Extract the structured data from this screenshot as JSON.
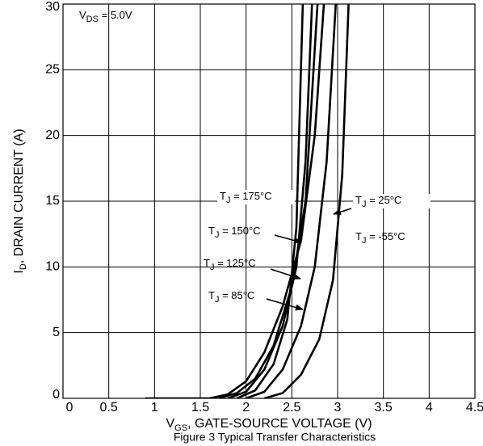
{
  "chart_data": {
    "type": "line",
    "caption": "Figure 3 Typical Transfer Characteristics",
    "x_label": {
      "text": "V",
      "sub": "GS",
      "rest": ", GATE-SOURCE VOLTAGE (V)"
    },
    "y_label": {
      "text": "I",
      "sub": "D",
      "rest": ", DRAIN CURRENT (A)"
    },
    "condition": {
      "text": "V",
      "sub": "DS",
      "rest": " = 5.0V"
    },
    "xlim": [
      0,
      4.5
    ],
    "xticks": [
      0,
      0.5,
      1,
      1.5,
      2,
      2.5,
      3,
      3.5,
      4,
      4.5
    ],
    "ylim": [
      0,
      30
    ],
    "yticks": [
      0,
      5,
      10,
      15,
      20,
      25,
      30
    ],
    "grid": true,
    "color": "#000000",
    "series": [
      {
        "name": {
          "text": "T",
          "sub": "J",
          "rest": " = 175°C"
        },
        "x": [
          0.9,
          1.6,
          1.8,
          2.0,
          2.2,
          2.4,
          2.6,
          2.75,
          2.85
        ],
        "values": [
          0,
          0,
          0.3,
          1.3,
          3.5,
          7,
          12,
          20,
          30
        ]
      },
      {
        "name": {
          "text": "T",
          "sub": "J",
          "rest": " = 150°C"
        },
        "x": [
          1.7,
          1.9,
          2.1,
          2.3,
          2.5,
          2.65,
          2.78
        ],
        "values": [
          0,
          0.4,
          1.5,
          4,
          8.5,
          15,
          30
        ]
      },
      {
        "name": {
          "text": "T",
          "sub": "J",
          "rest": " = 125°C"
        },
        "x": [
          1.8,
          2.0,
          2.2,
          2.4,
          2.55,
          2.65,
          2.72
        ],
        "values": [
          0,
          0.5,
          2.2,
          5.5,
          10,
          18,
          30
        ]
      },
      {
        "name": {
          "text": "T",
          "sub": "J",
          "rest": " = 85°C"
        },
        "x": [
          1.9,
          2.1,
          2.3,
          2.45,
          2.55,
          2.62
        ],
        "values": [
          0,
          0.6,
          2.6,
          6,
          13,
          30
        ]
      },
      {
        "name": {
          "text": "T",
          "sub": "J",
          "rest": " = 25°C"
        },
        "x": [
          2.0,
          2.2,
          2.4,
          2.6,
          2.75,
          2.88,
          2.98
        ],
        "values": [
          0,
          0.5,
          2.2,
          5.5,
          10,
          18,
          30
        ]
      },
      {
        "name": {
          "text": "T",
          "sub": "J",
          "rest": " = -55°C"
        },
        "x": [
          2.2,
          2.4,
          2.6,
          2.8,
          2.95,
          3.05,
          3.12
        ],
        "values": [
          0,
          0.4,
          1.8,
          4.5,
          9,
          17,
          30
        ]
      }
    ]
  }
}
